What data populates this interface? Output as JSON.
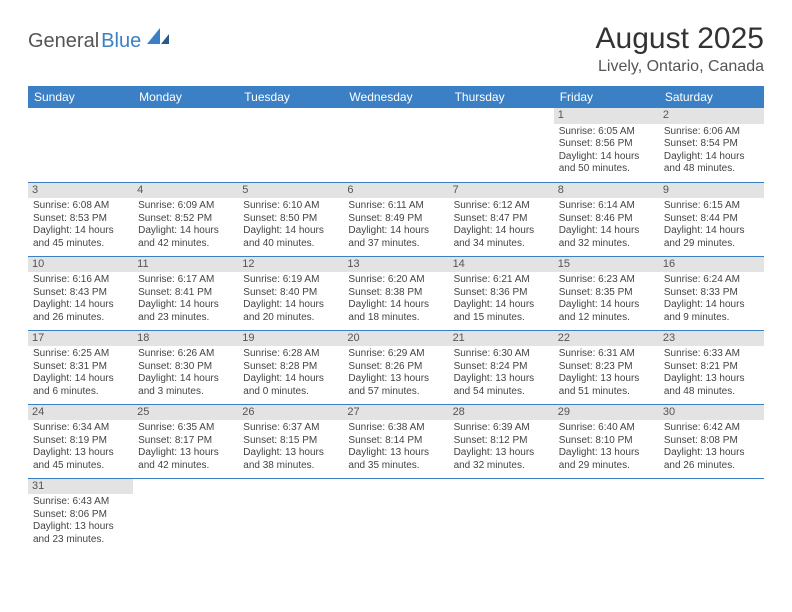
{
  "logo": {
    "general": "General",
    "blue": "Blue"
  },
  "title": "August 2025",
  "location": "Lively, Ontario, Canada",
  "colors": {
    "header_bg": "#3b7fc4",
    "header_text": "#ffffff",
    "daynum_bg": "#e3e3e3",
    "border": "#3b7fc4",
    "logo_gray": "#555555",
    "logo_blue": "#3b7fc4"
  },
  "day_headers": [
    "Sunday",
    "Monday",
    "Tuesday",
    "Wednesday",
    "Thursday",
    "Friday",
    "Saturday"
  ],
  "weeks": [
    [
      null,
      null,
      null,
      null,
      null,
      {
        "n": "1",
        "sr": "Sunrise: 6:05 AM",
        "ss": "Sunset: 8:56 PM",
        "dl": "Daylight: 14 hours and 50 minutes."
      },
      {
        "n": "2",
        "sr": "Sunrise: 6:06 AM",
        "ss": "Sunset: 8:54 PM",
        "dl": "Daylight: 14 hours and 48 minutes."
      }
    ],
    [
      {
        "n": "3",
        "sr": "Sunrise: 6:08 AM",
        "ss": "Sunset: 8:53 PM",
        "dl": "Daylight: 14 hours and 45 minutes."
      },
      {
        "n": "4",
        "sr": "Sunrise: 6:09 AM",
        "ss": "Sunset: 8:52 PM",
        "dl": "Daylight: 14 hours and 42 minutes."
      },
      {
        "n": "5",
        "sr": "Sunrise: 6:10 AM",
        "ss": "Sunset: 8:50 PM",
        "dl": "Daylight: 14 hours and 40 minutes."
      },
      {
        "n": "6",
        "sr": "Sunrise: 6:11 AM",
        "ss": "Sunset: 8:49 PM",
        "dl": "Daylight: 14 hours and 37 minutes."
      },
      {
        "n": "7",
        "sr": "Sunrise: 6:12 AM",
        "ss": "Sunset: 8:47 PM",
        "dl": "Daylight: 14 hours and 34 minutes."
      },
      {
        "n": "8",
        "sr": "Sunrise: 6:14 AM",
        "ss": "Sunset: 8:46 PM",
        "dl": "Daylight: 14 hours and 32 minutes."
      },
      {
        "n": "9",
        "sr": "Sunrise: 6:15 AM",
        "ss": "Sunset: 8:44 PM",
        "dl": "Daylight: 14 hours and 29 minutes."
      }
    ],
    [
      {
        "n": "10",
        "sr": "Sunrise: 6:16 AM",
        "ss": "Sunset: 8:43 PM",
        "dl": "Daylight: 14 hours and 26 minutes."
      },
      {
        "n": "11",
        "sr": "Sunrise: 6:17 AM",
        "ss": "Sunset: 8:41 PM",
        "dl": "Daylight: 14 hours and 23 minutes."
      },
      {
        "n": "12",
        "sr": "Sunrise: 6:19 AM",
        "ss": "Sunset: 8:40 PM",
        "dl": "Daylight: 14 hours and 20 minutes."
      },
      {
        "n": "13",
        "sr": "Sunrise: 6:20 AM",
        "ss": "Sunset: 8:38 PM",
        "dl": "Daylight: 14 hours and 18 minutes."
      },
      {
        "n": "14",
        "sr": "Sunrise: 6:21 AM",
        "ss": "Sunset: 8:36 PM",
        "dl": "Daylight: 14 hours and 15 minutes."
      },
      {
        "n": "15",
        "sr": "Sunrise: 6:23 AM",
        "ss": "Sunset: 8:35 PM",
        "dl": "Daylight: 14 hours and 12 minutes."
      },
      {
        "n": "16",
        "sr": "Sunrise: 6:24 AM",
        "ss": "Sunset: 8:33 PM",
        "dl": "Daylight: 14 hours and 9 minutes."
      }
    ],
    [
      {
        "n": "17",
        "sr": "Sunrise: 6:25 AM",
        "ss": "Sunset: 8:31 PM",
        "dl": "Daylight: 14 hours and 6 minutes."
      },
      {
        "n": "18",
        "sr": "Sunrise: 6:26 AM",
        "ss": "Sunset: 8:30 PM",
        "dl": "Daylight: 14 hours and 3 minutes."
      },
      {
        "n": "19",
        "sr": "Sunrise: 6:28 AM",
        "ss": "Sunset: 8:28 PM",
        "dl": "Daylight: 14 hours and 0 minutes."
      },
      {
        "n": "20",
        "sr": "Sunrise: 6:29 AM",
        "ss": "Sunset: 8:26 PM",
        "dl": "Daylight: 13 hours and 57 minutes."
      },
      {
        "n": "21",
        "sr": "Sunrise: 6:30 AM",
        "ss": "Sunset: 8:24 PM",
        "dl": "Daylight: 13 hours and 54 minutes."
      },
      {
        "n": "22",
        "sr": "Sunrise: 6:31 AM",
        "ss": "Sunset: 8:23 PM",
        "dl": "Daylight: 13 hours and 51 minutes."
      },
      {
        "n": "23",
        "sr": "Sunrise: 6:33 AM",
        "ss": "Sunset: 8:21 PM",
        "dl": "Daylight: 13 hours and 48 minutes."
      }
    ],
    [
      {
        "n": "24",
        "sr": "Sunrise: 6:34 AM",
        "ss": "Sunset: 8:19 PM",
        "dl": "Daylight: 13 hours and 45 minutes."
      },
      {
        "n": "25",
        "sr": "Sunrise: 6:35 AM",
        "ss": "Sunset: 8:17 PM",
        "dl": "Daylight: 13 hours and 42 minutes."
      },
      {
        "n": "26",
        "sr": "Sunrise: 6:37 AM",
        "ss": "Sunset: 8:15 PM",
        "dl": "Daylight: 13 hours and 38 minutes."
      },
      {
        "n": "27",
        "sr": "Sunrise: 6:38 AM",
        "ss": "Sunset: 8:14 PM",
        "dl": "Daylight: 13 hours and 35 minutes."
      },
      {
        "n": "28",
        "sr": "Sunrise: 6:39 AM",
        "ss": "Sunset: 8:12 PM",
        "dl": "Daylight: 13 hours and 32 minutes."
      },
      {
        "n": "29",
        "sr": "Sunrise: 6:40 AM",
        "ss": "Sunset: 8:10 PM",
        "dl": "Daylight: 13 hours and 29 minutes."
      },
      {
        "n": "30",
        "sr": "Sunrise: 6:42 AM",
        "ss": "Sunset: 8:08 PM",
        "dl": "Daylight: 13 hours and 26 minutes."
      }
    ],
    [
      {
        "n": "31",
        "sr": "Sunrise: 6:43 AM",
        "ss": "Sunset: 8:06 PM",
        "dl": "Daylight: 13 hours and 23 minutes."
      },
      null,
      null,
      null,
      null,
      null,
      null
    ]
  ]
}
